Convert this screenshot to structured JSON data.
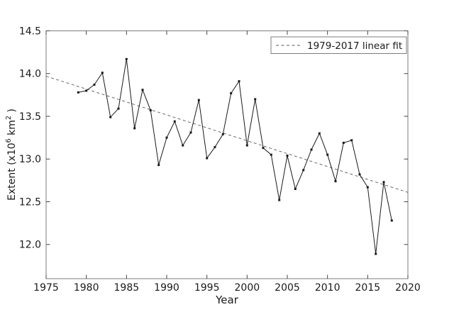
{
  "chart_data": {
    "type": "line",
    "title": "",
    "xlabel": "Year",
    "ylabel": "Extent (x10^6 km^2 )",
    "ylabel_parts": [
      {
        "t": "Extent (x10"
      },
      {
        "t": "6",
        "sup": true
      },
      {
        "t": " km"
      },
      {
        "t": "2",
        "sup": true
      },
      {
        "t": " )"
      }
    ],
    "xlim": [
      1975,
      2020
    ],
    "ylim": [
      11.6,
      14.5
    ],
    "xticks": [
      1975,
      1980,
      1985,
      1990,
      1995,
      2000,
      2005,
      2010,
      2015,
      2020
    ],
    "xtick_labels": [
      "1975",
      "1980",
      "1985",
      "1990",
      "1995",
      "2000",
      "2005",
      "2010",
      "2015",
      "2020"
    ],
    "yticks": [
      12.0,
      12.5,
      13.0,
      13.5,
      14.0,
      14.5
    ],
    "ytick_labels": [
      "12.0",
      "12.5",
      "13.0",
      "13.5",
      "14.0",
      "14.5"
    ],
    "grid": false,
    "legend": {
      "position": "upper right",
      "entries": [
        {
          "label": "1979-2017 linear fit",
          "style": "dashed"
        }
      ]
    },
    "series": [
      {
        "name": "annual-sea-ice-extent",
        "style": "solid-markers",
        "color": "#1a1a1a",
        "x": [
          1979,
          1980,
          1981,
          1982,
          1983,
          1984,
          1985,
          1986,
          1987,
          1988,
          1989,
          1990,
          1991,
          1992,
          1993,
          1994,
          1995,
          1996,
          1997,
          1998,
          1999,
          2000,
          2001,
          2002,
          2003,
          2004,
          2005,
          2006,
          2007,
          2008,
          2009,
          2010,
          2011,
          2012,
          2013,
          2014,
          2015,
          2016,
          2017,
          2018
        ],
        "y": [
          13.78,
          13.8,
          13.87,
          14.01,
          13.49,
          13.59,
          14.17,
          13.36,
          13.81,
          13.57,
          12.93,
          13.25,
          13.44,
          13.16,
          13.31,
          13.69,
          13.01,
          13.14,
          13.29,
          13.77,
          13.91,
          13.16,
          13.7,
          13.13,
          13.05,
          12.52,
          13.04,
          12.65,
          12.87,
          13.11,
          13.3,
          13.05,
          12.74,
          13.19,
          13.22,
          12.82,
          12.67,
          11.89,
          12.73,
          12.28
        ]
      },
      {
        "name": "1979-2017 linear fit",
        "style": "dashed",
        "color": "#595959",
        "x": [
          1975,
          2020
        ],
        "y": [
          13.97,
          12.61
        ]
      }
    ],
    "colors": {
      "line": "#1a1a1a",
      "trend": "#595959",
      "spine": "#7d7d7d",
      "tick": "#444444",
      "text": "#1a1a1a",
      "background": "#ffffff"
    }
  }
}
